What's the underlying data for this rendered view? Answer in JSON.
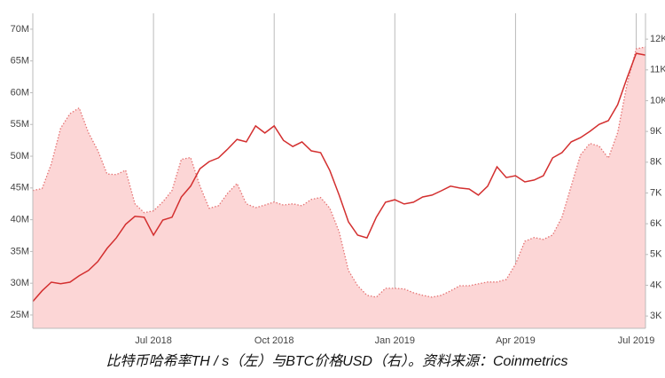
{
  "chart_data": {
    "type": "dual-line-area",
    "title": "比特币哈希率TH / s（左）与BTC价格USD（右）。资料来源：Coinmetrics",
    "categories": [
      null,
      null,
      null,
      null,
      null,
      null,
      null,
      null,
      null,
      null,
      null,
      null,
      null,
      "Jul 2018",
      null,
      null,
      null,
      null,
      null,
      null,
      null,
      null,
      null,
      null,
      null,
      null,
      "Oct 2018",
      null,
      null,
      null,
      null,
      null,
      null,
      null,
      null,
      null,
      null,
      null,
      null,
      "Jan 2019",
      null,
      null,
      null,
      null,
      null,
      null,
      null,
      null,
      null,
      null,
      null,
      null,
      "Apr 2019",
      null,
      null,
      null,
      null,
      null,
      null,
      null,
      null,
      null,
      null,
      null,
      null,
      "Jul 2019",
      null
    ],
    "series": [
      {
        "name": "比特币哈希率TH / s",
        "color": "#e57373",
        "fill": "#fcd6d6",
        "axis": "y",
        "values": [
          44.6,
          44.9,
          48.8,
          54.4,
          56.7,
          57.6,
          53.7,
          50.9,
          47.2,
          47.1,
          47.8,
          42.5,
          41.1,
          41.4,
          42.8,
          44.6,
          49.5,
          49.8,
          45.3,
          41.8,
          42.2,
          44.2,
          45.7,
          42.5,
          41.9,
          42.3,
          42.8,
          42.3,
          42.5,
          42.2,
          43.2,
          43.5,
          41.8,
          38.1,
          32.0,
          29.6,
          28.1,
          27.8,
          29.2,
          29.2,
          29.1,
          28.5,
          28.1,
          27.8,
          28.1,
          28.8,
          29.6,
          29.6,
          29.9,
          30.2,
          30.2,
          30.6,
          33.0,
          36.6,
          37.2,
          36.9,
          37.6,
          40.4,
          45.3,
          50.2,
          52.0,
          51.6,
          49.7,
          53.7,
          61.3,
          66.9,
          67.2
        ]
      },
      {
        "name": "BTC价格USD",
        "color": "#d32f2f",
        "axis": "y2",
        "values": [
          3.47,
          3.82,
          4.1,
          4.05,
          4.1,
          4.31,
          4.48,
          4.77,
          5.2,
          5.54,
          5.98,
          6.24,
          6.21,
          5.63,
          6.12,
          6.21,
          6.87,
          7.22,
          7.79,
          8.02,
          8.14,
          8.43,
          8.74,
          8.66,
          9.18,
          8.95,
          9.18,
          8.71,
          8.51,
          8.66,
          8.37,
          8.31,
          7.73,
          6.93,
          6.06,
          5.63,
          5.54,
          6.21,
          6.7,
          6.78,
          6.64,
          6.7,
          6.87,
          6.93,
          7.07,
          7.22,
          7.16,
          7.13,
          6.93,
          7.22,
          7.85,
          7.5,
          7.56,
          7.36,
          7.42,
          7.56,
          8.14,
          8.31,
          8.66,
          8.8,
          9.0,
          9.23,
          9.35,
          9.87,
          10.73,
          11.54,
          11.48
        ]
      }
    ],
    "ylim": [
      22.9,
      72.5
    ],
    "yticks": [
      {
        "value": 25,
        "label": "25M"
      },
      {
        "value": 30,
        "label": "30M"
      },
      {
        "value": 35,
        "label": "35M"
      },
      {
        "value": 40,
        "label": "40M"
      },
      {
        "value": 45,
        "label": "45M"
      },
      {
        "value": 50,
        "label": "50M"
      },
      {
        "value": 55,
        "label": "55M"
      },
      {
        "value": 60,
        "label": "60M"
      },
      {
        "value": 65,
        "label": "65M"
      },
      {
        "value": 70,
        "label": "70M"
      }
    ],
    "y2lim": [
      2.6,
      12.84
    ],
    "y2ticks": [
      {
        "value": 3,
        "label": "3K"
      },
      {
        "value": 4,
        "label": "4K"
      },
      {
        "value": 5,
        "label": "5K"
      },
      {
        "value": 6,
        "label": "6K"
      },
      {
        "value": 7,
        "label": "7K"
      },
      {
        "value": 8,
        "label": "8K"
      },
      {
        "value": 9,
        "label": "9K"
      },
      {
        "value": 10,
        "label": "10K"
      },
      {
        "value": 11,
        "label": "11K"
      },
      {
        "value": 12,
        "label": "12K"
      }
    ],
    "grid": true
  }
}
